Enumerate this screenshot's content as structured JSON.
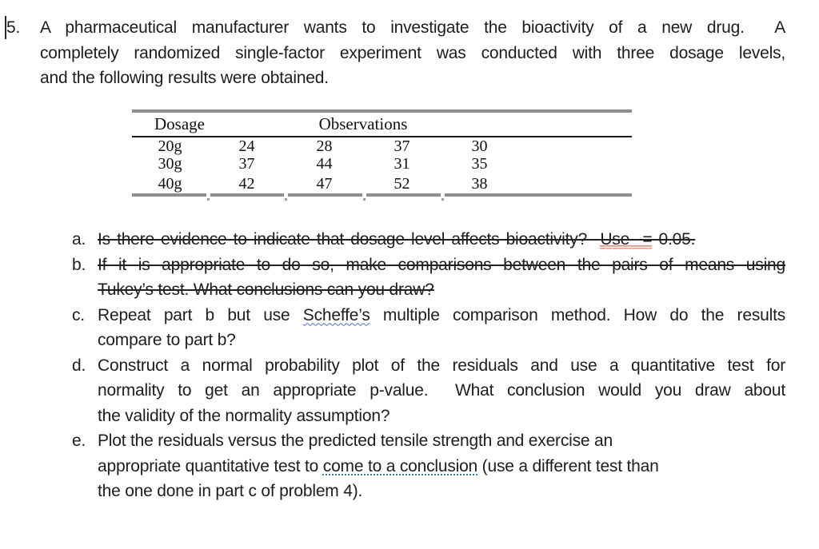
{
  "problem": {
    "number": "5.",
    "intro": {
      "line1": "A pharmaceutical manufacturer wants to investigate the bioactivity of a new drug.  A",
      "line2": "completely randomized single-factor experiment was conducted with three dosage levels,",
      "line3": "and the following results were obtained."
    },
    "table": {
      "headers": {
        "dosage": "Dosage",
        "observations": "Observations"
      },
      "rows": [
        {
          "dosage": "20g",
          "obs": [
            "24",
            "28",
            "37",
            "30"
          ]
        },
        {
          "dosage": "30g",
          "obs": [
            "37",
            "44",
            "31",
            "35"
          ]
        },
        {
          "dosage": "40g",
          "obs": [
            "42",
            "47",
            "52",
            "38"
          ]
        }
      ]
    },
    "items": {
      "a": {
        "marker": "a.",
        "text_before_red": "Is there evidence to indicate that dosage level affects bioactivity?  ",
        "red": "Use  =",
        "text_after_red": " 0.05."
      },
      "b": {
        "marker": "b.",
        "line1": "If it is appropriate to do so, make comparisons between the pairs of means using",
        "line2": "Tukey’s test. What conclusions can you draw?"
      },
      "c": {
        "marker": "c.",
        "line1_before": "Repeat part b but use ",
        "line1_spell": "Scheffe’s",
        "line1_after": " multiple comparison method. How do the results",
        "line2": "compare to part b?"
      },
      "d": {
        "marker": "d.",
        "line1": "Construct a normal probability plot of the residuals and use a quantitative test for",
        "line2": "normality to get an appropriate p-value.  What conclusion would you draw about",
        "line3": "the validity of the normality assumption?"
      },
      "e": {
        "marker": "e.",
        "line1": "Plot the residuals versus the predicted tensile strength and exercise an",
        "line2_before": "appropriate quantitative test to ",
        "line2_gram": "come to a conclusion",
        "line2_after": " (use a different test than",
        "line3": "the one done in part c of problem 4)."
      }
    }
  },
  "colors": {
    "text": "#1d1d1d",
    "strikethrough": "#222222",
    "table_border_gray": "#8e8e8e",
    "table_header_rule": "#1a1a1a",
    "red_double_underline": "#dd8b77",
    "spellcheck_wavy_blue": "#5666c9",
    "grammar_dotted_blue": "#3d7ab5"
  }
}
